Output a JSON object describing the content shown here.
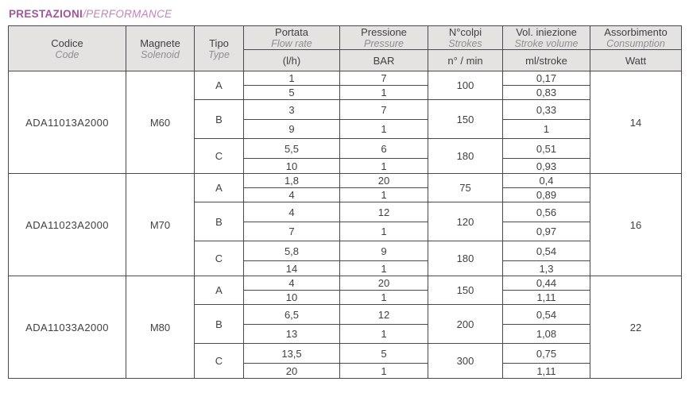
{
  "title": {
    "primary": "PRESTAZIONI",
    "secondary": "/PERFORMANCE"
  },
  "colors": {
    "accent_primary": "#a6539d",
    "accent_secondary": "#c584bc",
    "header_bg": "#e4e3e2",
    "border": "#4a4a4c",
    "text": "#414042",
    "text_muted": "#8e8e91"
  },
  "table": {
    "headers": {
      "code": {
        "it": "Codice",
        "en": "Code"
      },
      "solenoid": {
        "it": "Magnete",
        "en": "Solenoid"
      },
      "type": {
        "it": "Tipo",
        "en": "Type"
      },
      "flow": {
        "it": "Portata",
        "en": "Flow rate",
        "unit": "(l/h)"
      },
      "pressure": {
        "it": "Pressione",
        "en": "Pressure",
        "unit": "BAR"
      },
      "strokes": {
        "it": "N°colpi",
        "en": "Strokes",
        "unit": "n° / min"
      },
      "volume": {
        "it": "Vol. iniezione",
        "en": "Stroke volume",
        "unit": "ml/stroke"
      },
      "consumption": {
        "it": "Assorbimento",
        "en": "Consumption",
        "unit": "Watt"
      }
    },
    "groups": [
      {
        "code": "ADA11013A2000",
        "solenoid": "M60",
        "watt": "14",
        "types": [
          {
            "type": "A",
            "strokes": "100",
            "rows": [
              {
                "flow": "1",
                "pressure": "7",
                "volume": "0,17"
              },
              {
                "flow": "5",
                "pressure": "1",
                "volume": "0,83"
              }
            ]
          },
          {
            "type": "B",
            "strokes": "150",
            "rows": [
              {
                "flow": "3",
                "pressure": "7",
                "volume": "0,33"
              },
              {
                "flow": "9",
                "pressure": "1",
                "volume": "1"
              }
            ]
          },
          {
            "type": "C",
            "strokes": "180",
            "rows": [
              {
                "flow": "5,5",
                "pressure": "6",
                "volume": "0,51"
              },
              {
                "flow": "10",
                "pressure": "1",
                "volume": "0,93"
              }
            ]
          }
        ]
      },
      {
        "code": "ADA11023A2000",
        "solenoid": "M70",
        "watt": "16",
        "types": [
          {
            "type": "A",
            "strokes": "75",
            "rows": [
              {
                "flow": "1,8",
                "pressure": "20",
                "volume": "0,4"
              },
              {
                "flow": "4",
                "pressure": "1",
                "volume": "0,89"
              }
            ]
          },
          {
            "type": "B",
            "strokes": "120",
            "rows": [
              {
                "flow": "4",
                "pressure": "12",
                "volume": "0,56"
              },
              {
                "flow": "7",
                "pressure": "1",
                "volume": "0,97"
              }
            ]
          },
          {
            "type": "C",
            "strokes": "180",
            "rows": [
              {
                "flow": "5,8",
                "pressure": "9",
                "volume": "0,54"
              },
              {
                "flow": "14",
                "pressure": "1",
                "volume": "1,3"
              }
            ]
          }
        ]
      },
      {
        "code": "ADA11033A2000",
        "solenoid": "M80",
        "watt": "22",
        "types": [
          {
            "type": "A",
            "strokes": "150",
            "rows": [
              {
                "flow": "4",
                "pressure": "20",
                "volume": "0,44"
              },
              {
                "flow": "10",
                "pressure": "1",
                "volume": "1,11"
              }
            ]
          },
          {
            "type": "B",
            "strokes": "200",
            "rows": [
              {
                "flow": "6,5",
                "pressure": "12",
                "volume": "0,54"
              },
              {
                "flow": "13",
                "pressure": "1",
                "volume": "1,08"
              }
            ]
          },
          {
            "type": "C",
            "strokes": "300",
            "rows": [
              {
                "flow": "13,5",
                "pressure": "5",
                "volume": "0,75"
              },
              {
                "flow": "20",
                "pressure": "1",
                "volume": "1,11"
              }
            ]
          }
        ]
      }
    ]
  }
}
